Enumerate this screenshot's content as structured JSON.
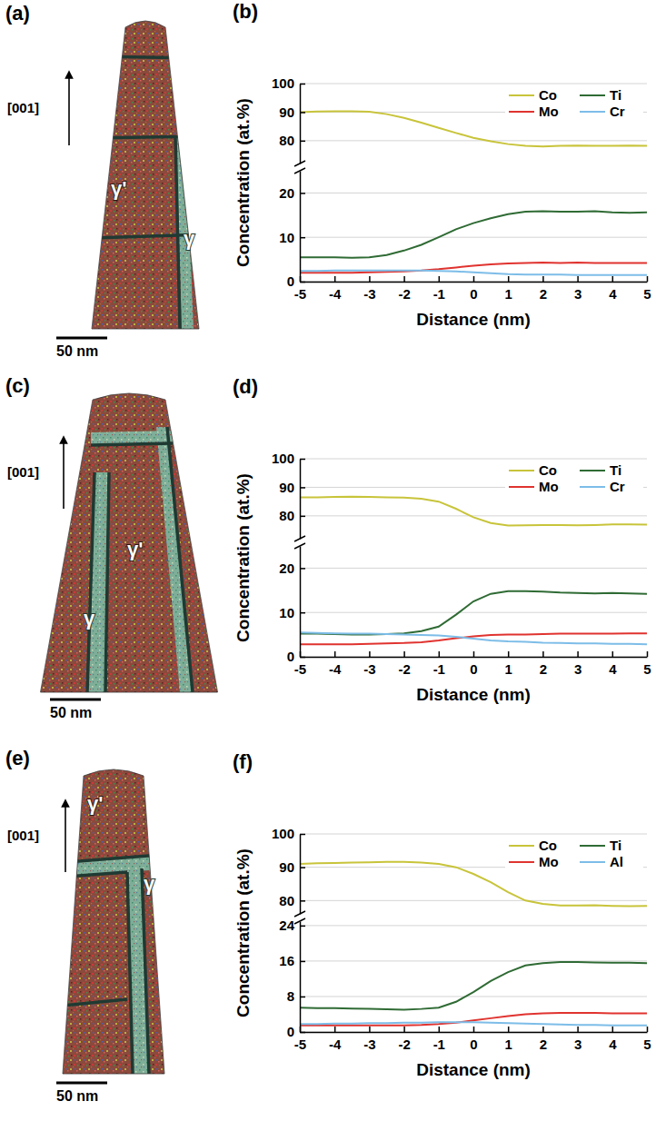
{
  "chart_data": [
    {
      "type": "line",
      "panel_label": "(b)",
      "x_label": "Distance (nm)",
      "y_label": "Concentration (at.%)",
      "xlim": [
        -5,
        5
      ],
      "xticks": [
        -5,
        -4,
        -3,
        -2,
        -1,
        0,
        1,
        2,
        3,
        4,
        5
      ],
      "y_segments": [
        {
          "ylim": [
            0,
            25
          ],
          "yticks": [
            0,
            10,
            20
          ]
        },
        {
          "ylim": [
            72,
            100
          ],
          "yticks": [
            80,
            90,
            100
          ]
        }
      ],
      "grid": true,
      "legend": "upper right",
      "x": [
        -5,
        -4.5,
        -4,
        -3.5,
        -3,
        -2.5,
        -2,
        -1.5,
        -1,
        -0.5,
        0,
        0.5,
        1,
        1.5,
        2,
        2.5,
        3,
        3.5,
        4,
        4.5,
        5
      ],
      "series": [
        {
          "name": "Co",
          "color": "#c8c43a",
          "values": [
            90,
            90.2,
            90.3,
            90.3,
            90.1,
            89.3,
            88,
            86.3,
            84.5,
            82.7,
            81,
            79.8,
            78.8,
            78.2,
            78,
            78.2,
            78.3,
            78.2,
            78.2,
            78.3,
            78.2
          ]
        },
        {
          "name": "Ti",
          "color": "#2f6b34",
          "values": [
            5.5,
            5.5,
            5.5,
            5.4,
            5.5,
            6,
            7,
            8.3,
            10,
            11.8,
            13.2,
            14.3,
            15.2,
            15.8,
            15.9,
            15.8,
            15.8,
            15.9,
            15.6,
            15.5,
            15.6
          ]
        },
        {
          "name": "Mo",
          "color": "#e0332f",
          "values": [
            2.0,
            2.0,
            2.0,
            2.0,
            2.1,
            2.2,
            2.3,
            2.5,
            2.8,
            3.2,
            3.6,
            3.9,
            4.1,
            4.2,
            4.3,
            4.2,
            4.3,
            4.2,
            4.2,
            4.2,
            4.2
          ]
        },
        {
          "name": "Cr",
          "color": "#7dbde8",
          "values": [
            2.4,
            2.4,
            2.5,
            2.5,
            2.5,
            2.5,
            2.5,
            2.5,
            2.4,
            2.3,
            2.1,
            1.9,
            1.7,
            1.6,
            1.6,
            1.6,
            1.5,
            1.5,
            1.5,
            1.5,
            1.5
          ]
        }
      ]
    },
    {
      "type": "line",
      "panel_label": "(d)",
      "x_label": "Distance (nm)",
      "y_label": "Concentration (at.%)",
      "xlim": [
        -5,
        5
      ],
      "xticks": [
        -5,
        -4,
        -3,
        -2,
        -1,
        0,
        1,
        2,
        3,
        4,
        5
      ],
      "y_segments": [
        {
          "ylim": [
            0,
            25
          ],
          "yticks": [
            0,
            10,
            20
          ]
        },
        {
          "ylim": [
            72,
            100
          ],
          "yticks": [
            80,
            90,
            100
          ]
        }
      ],
      "grid": true,
      "legend": "upper right",
      "x": [
        -5,
        -4.5,
        -4,
        -3.5,
        -3,
        -2.5,
        -2,
        -1.5,
        -1,
        -0.5,
        0,
        0.5,
        1,
        1.5,
        2,
        2.5,
        3,
        3.5,
        4,
        4.5,
        5
      ],
      "series": [
        {
          "name": "Co",
          "color": "#c8c43a",
          "values": [
            86.5,
            86.5,
            86.6,
            86.7,
            86.6,
            86.5,
            86.4,
            86,
            85,
            82.5,
            79.5,
            77.5,
            76.6,
            76.7,
            76.8,
            76.8,
            76.7,
            76.8,
            77,
            77,
            76.9
          ]
        },
        {
          "name": "Ti",
          "color": "#2f6b34",
          "values": [
            5.2,
            5.2,
            5.1,
            5.0,
            5.0,
            5.1,
            5.3,
            5.8,
            6.8,
            9.5,
            12.5,
            14.2,
            14.8,
            14.8,
            14.7,
            14.5,
            14.4,
            14.3,
            14.4,
            14.3,
            14.2
          ]
        },
        {
          "name": "Mo",
          "color": "#e0332f",
          "values": [
            2.8,
            2.8,
            2.8,
            2.8,
            2.9,
            3.0,
            3.1,
            3.3,
            3.7,
            4.2,
            4.6,
            4.9,
            5.0,
            5.0,
            5.1,
            5.2,
            5.2,
            5.2,
            5.2,
            5.3,
            5.3
          ]
        },
        {
          "name": "Cr",
          "color": "#7dbde8",
          "values": [
            5.5,
            5.4,
            5.3,
            5.2,
            5.2,
            5.1,
            5.0,
            4.9,
            4.8,
            4.5,
            4.1,
            3.7,
            3.5,
            3.4,
            3.2,
            3.1,
            3.0,
            3.0,
            2.9,
            2.9,
            2.8
          ]
        }
      ]
    },
    {
      "type": "line",
      "panel_label": "(f)",
      "x_label": "Distance (nm)",
      "y_label": "Concentration (at.%)",
      "xlim": [
        -5,
        5
      ],
      "xticks": [
        -5,
        -4,
        -3,
        -2,
        -1,
        0,
        1,
        2,
        3,
        4,
        5
      ],
      "y_segments": [
        {
          "ylim": [
            0,
            25
          ],
          "yticks": [
            0,
            8,
            16,
            24
          ]
        },
        {
          "ylim": [
            76,
            100
          ],
          "yticks": [
            80,
            90,
            100
          ]
        }
      ],
      "grid": true,
      "legend": "upper right",
      "x": [
        -5,
        -4.5,
        -4,
        -3.5,
        -3,
        -2.5,
        -2,
        -1.5,
        -1,
        -0.5,
        0,
        0.5,
        1,
        1.5,
        2,
        2.5,
        3,
        3.5,
        4,
        4.5,
        5
      ],
      "series": [
        {
          "name": "Co",
          "color": "#c8c43a",
          "values": [
            91,
            91.2,
            91.3,
            91.4,
            91.5,
            91.6,
            91.6,
            91.4,
            91,
            90,
            88,
            85.5,
            82.5,
            80,
            79,
            78.5,
            78.5,
            78.6,
            78.4,
            78.3,
            78.4
          ]
        },
        {
          "name": "Ti",
          "color": "#2f6b34",
          "values": [
            5.5,
            5.4,
            5.4,
            5.3,
            5.2,
            5.1,
            5.0,
            5.2,
            5.5,
            6.8,
            9,
            11.5,
            13.5,
            15,
            15.5,
            15.8,
            15.8,
            15.7,
            15.6,
            15.6,
            15.5
          ]
        },
        {
          "name": "Mo",
          "color": "#e0332f",
          "values": [
            1.5,
            1.5,
            1.5,
            1.5,
            1.5,
            1.5,
            1.5,
            1.6,
            1.8,
            2.1,
            2.6,
            3.1,
            3.6,
            4.0,
            4.2,
            4.3,
            4.3,
            4.3,
            4.2,
            4.2,
            4.2
          ]
        },
        {
          "name": "Al",
          "color": "#7dbde8",
          "values": [
            1.8,
            1.8,
            1.9,
            1.9,
            2.0,
            2.0,
            2.1,
            2.1,
            2.2,
            2.2,
            2.2,
            2.1,
            2.0,
            1.9,
            1.8,
            1.7,
            1.6,
            1.6,
            1.5,
            1.5,
            1.5
          ]
        }
      ]
    }
  ],
  "reconstructions": [
    {
      "label": "(a)",
      "direction": "[001]",
      "gamma_prime": "γ'",
      "gamma": "γ",
      "scale_bar": "50 nm"
    },
    {
      "label": "(c)",
      "direction": "[001]",
      "gamma_prime": "γ'",
      "gamma": "γ",
      "scale_bar": "50 nm"
    },
    {
      "label": "(e)",
      "direction": "[001]",
      "gamma_prime": "γ'",
      "gamma": "γ",
      "scale_bar": "50 nm"
    }
  ]
}
